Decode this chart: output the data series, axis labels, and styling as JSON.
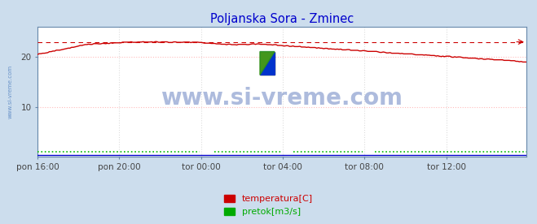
{
  "title": "Poljanska Sora - Zminec",
  "title_color": "#0000cc",
  "fig_bg_color": "#ccdded",
  "plot_bg_color": "#ffffff",
  "grid_color": "#ffbbbb",
  "grid_color2": "#dddddd",
  "xlim": [
    0,
    287
  ],
  "ylim": [
    0,
    26
  ],
  "yticks": [
    10,
    20
  ],
  "xtick_labels": [
    "pon 16:00",
    "pon 20:00",
    "tor 00:00",
    "tor 04:00",
    "tor 08:00",
    "tor 12:00"
  ],
  "xtick_positions": [
    0,
    48,
    96,
    144,
    192,
    240
  ],
  "temp_max_line": 23.0,
  "watermark": "www.si-vreme.com",
  "watermark_color": "#3355aa",
  "watermark_alpha": 0.4,
  "legend_labels": [
    "temperatura[C]",
    "pretok[m3/s]"
  ],
  "legend_colors": [
    "#cc0000",
    "#00aa00"
  ],
  "temp_color": "#cc0000",
  "pretok_color": "#00bb00",
  "visina_color": "#0000cc",
  "axis_color": "#6688aa",
  "tick_color": "#444444"
}
